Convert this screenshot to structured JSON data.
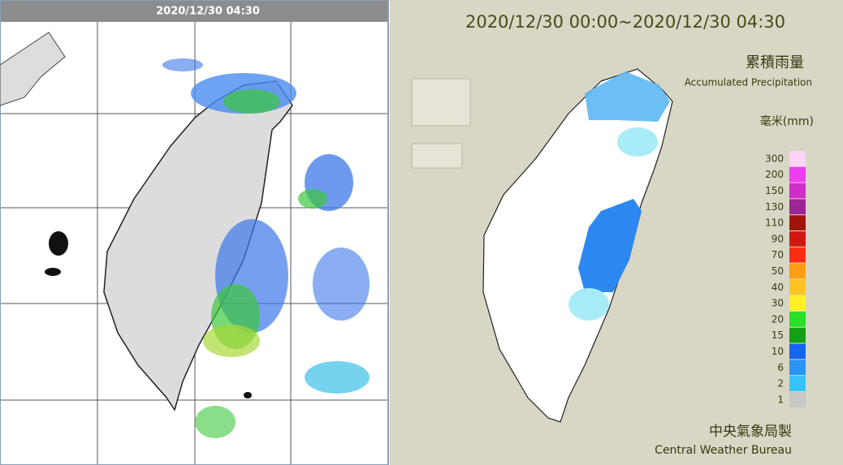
{
  "left_panel": {
    "timestamp": "2020/12/30 04:30"
  },
  "right_panel": {
    "title": "2020/12/30 00:00~2020/12/30 04:30",
    "legend": {
      "title_zh": "累積雨量",
      "title_en": "Accumulated Precipitation",
      "unit": "毫米(mm)",
      "items": [
        {
          "label": 300,
          "color": "#fcd4fc"
        },
        {
          "label": 200,
          "color": "#f03cf0"
        },
        {
          "label": 150,
          "color": "#d02cc8"
        },
        {
          "label": 130,
          "color": "#9c2494"
        },
        {
          "label": 110,
          "color": "#a0140c"
        },
        {
          "label": 90,
          "color": "#d01810"
        },
        {
          "label": 70,
          "color": "#ff2c14"
        },
        {
          "label": 50,
          "color": "#ff9c14"
        },
        {
          "label": 40,
          "color": "#ffc424"
        },
        {
          "label": 30,
          "color": "#fff024"
        },
        {
          "label": 20,
          "color": "#28e028"
        },
        {
          "label": 15,
          "color": "#14a014"
        },
        {
          "label": 10,
          "color": "#1464f0"
        },
        {
          "label": 6,
          "color": "#2894f4"
        },
        {
          "label": 2,
          "color": "#34c4fc"
        },
        {
          "label": 1,
          "color": "#c8c8c8"
        }
      ]
    },
    "credit_zh": "中央氣象局製",
    "credit_en": "Central Weather Bureau"
  }
}
